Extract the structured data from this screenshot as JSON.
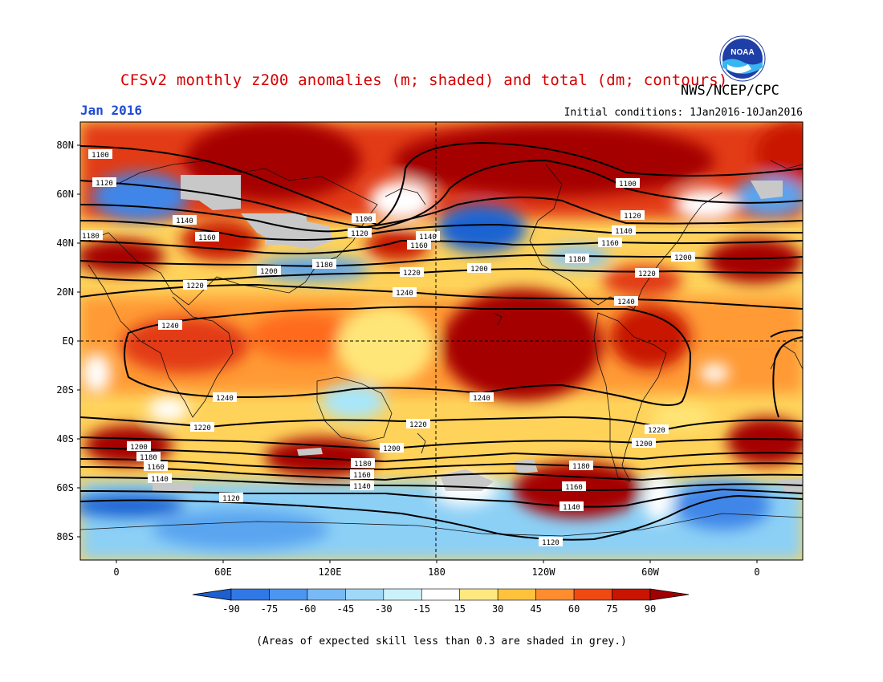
{
  "header": {
    "title": "CFSv2 monthly z200 anomalies (m; shaded) and total (dm; contours)",
    "agency": "NWS/NCEP/CPC",
    "month": "Jan 2016",
    "initial_conditions": "Initial conditions: 1Jan2016-10Jan2016",
    "logo_text": "NOAA"
  },
  "map": {
    "lat_labels": [
      "80N",
      "60N",
      "40N",
      "20N",
      "EQ",
      "20S",
      "40S",
      "60S",
      "80S"
    ],
    "lon_labels": [
      "0",
      "60E",
      "120E",
      "180",
      "120W",
      "60W",
      "0"
    ],
    "contour_labels": [
      "1100",
      "1120",
      "1140",
      "1160",
      "1180",
      "1200",
      "1220",
      "1240"
    ],
    "colors": {
      "strong_negative": "#1e64d2",
      "negative": "#4a96f0",
      "weak_negative": "#b4f0fa",
      "neutral": "#ffffff",
      "weak_positive": "#ffe678",
      "positive": "#ff8c2d",
      "strong_positive": "#a50000",
      "low_skill": "#c8c8c8"
    }
  },
  "colorbar": {
    "labels": [
      "-90",
      "-75",
      "-60",
      "-45",
      "-30",
      "-15",
      "15",
      "30",
      "45",
      "60",
      "75",
      "90"
    ],
    "colors": [
      "#1e5fd0",
      "#2f78e6",
      "#4a96f0",
      "#78baf5",
      "#a0d8f8",
      "#cbf2fb",
      "#ffffff",
      "#ffe97f",
      "#ffc23a",
      "#ff8c2d",
      "#f04a12",
      "#c81400",
      "#a00000"
    ]
  },
  "footer": {
    "note": "(Areas of expected skill less than 0.3 are shaded in grey.)"
  }
}
